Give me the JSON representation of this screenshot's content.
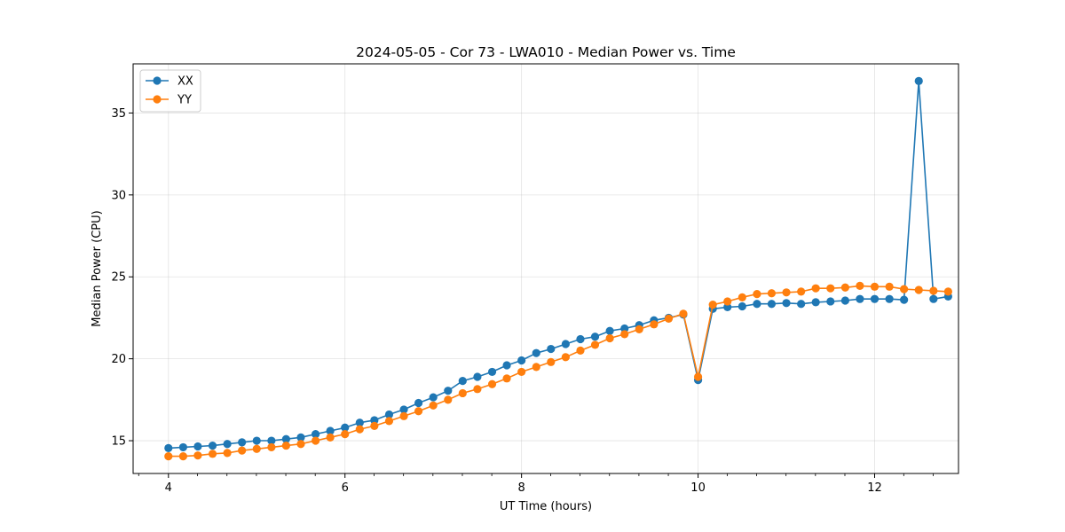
{
  "chart_data": {
    "type": "line",
    "title": "2024-05-05 - Cor 73 - LWA010 - Median Power vs. Time",
    "xlabel": "UT Time (hours)",
    "ylabel": "Median Power (CPU)",
    "xlim": [
      3.6,
      12.95
    ],
    "ylim": [
      13.0,
      38.0
    ],
    "xticks": [
      4,
      6,
      8,
      10,
      12
    ],
    "yticks": [
      15,
      20,
      25,
      30,
      35
    ],
    "grid": true,
    "legend_position": "top-left",
    "series": [
      {
        "name": "XX",
        "color": "#1f77b4",
        "x": [
          4.0,
          4.167,
          4.333,
          4.5,
          4.667,
          4.833,
          5.0,
          5.167,
          5.333,
          5.5,
          5.667,
          5.833,
          6.0,
          6.167,
          6.333,
          6.5,
          6.667,
          6.833,
          7.0,
          7.167,
          7.333,
          7.5,
          7.667,
          7.833,
          8.0,
          8.167,
          8.333,
          8.5,
          8.667,
          8.833,
          9.0,
          9.167,
          9.333,
          9.5,
          9.667,
          9.833,
          10.0,
          10.167,
          10.333,
          10.5,
          10.667,
          10.833,
          11.0,
          11.167,
          11.333,
          11.5,
          11.667,
          11.833,
          12.0,
          12.167,
          12.333,
          12.5,
          12.667,
          12.833
        ],
        "y": [
          14.55,
          14.6,
          14.65,
          14.7,
          14.8,
          14.9,
          15.0,
          15.0,
          15.1,
          15.2,
          15.4,
          15.6,
          15.8,
          16.1,
          16.25,
          16.6,
          16.9,
          17.3,
          17.65,
          18.05,
          18.65,
          18.9,
          19.2,
          19.6,
          19.9,
          20.35,
          20.6,
          20.9,
          21.2,
          21.35,
          21.7,
          21.85,
          22.05,
          22.35,
          22.5,
          22.7,
          18.7,
          23.05,
          23.15,
          23.2,
          23.35,
          23.35,
          23.4,
          23.35,
          23.45,
          23.5,
          23.55,
          23.65,
          23.65,
          23.65,
          23.6,
          36.95,
          23.65,
          23.8
        ]
      },
      {
        "name": "YY",
        "color": "#ff7f0e",
        "x": [
          4.0,
          4.167,
          4.333,
          4.5,
          4.667,
          4.833,
          5.0,
          5.167,
          5.333,
          5.5,
          5.667,
          5.833,
          6.0,
          6.167,
          6.333,
          6.5,
          6.667,
          6.833,
          7.0,
          7.167,
          7.333,
          7.5,
          7.667,
          7.833,
          8.0,
          8.167,
          8.333,
          8.5,
          8.667,
          8.833,
          9.0,
          9.167,
          9.333,
          9.5,
          9.667,
          9.833,
          10.0,
          10.167,
          10.333,
          10.5,
          10.667,
          10.833,
          11.0,
          11.167,
          11.333,
          11.5,
          11.667,
          11.833,
          12.0,
          12.167,
          12.333,
          12.5,
          12.667,
          12.833
        ],
        "y": [
          14.05,
          14.05,
          14.1,
          14.2,
          14.25,
          14.4,
          14.5,
          14.6,
          14.7,
          14.8,
          15.0,
          15.2,
          15.4,
          15.7,
          15.9,
          16.2,
          16.5,
          16.8,
          17.15,
          17.5,
          17.9,
          18.15,
          18.45,
          18.8,
          19.2,
          19.5,
          19.8,
          20.1,
          20.5,
          20.85,
          21.25,
          21.5,
          21.8,
          22.1,
          22.45,
          22.75,
          18.9,
          23.3,
          23.5,
          23.75,
          23.95,
          24.0,
          24.05,
          24.1,
          24.3,
          24.3,
          24.35,
          24.45,
          24.4,
          24.4,
          24.25,
          24.2,
          24.15,
          24.1
        ]
      }
    ]
  }
}
